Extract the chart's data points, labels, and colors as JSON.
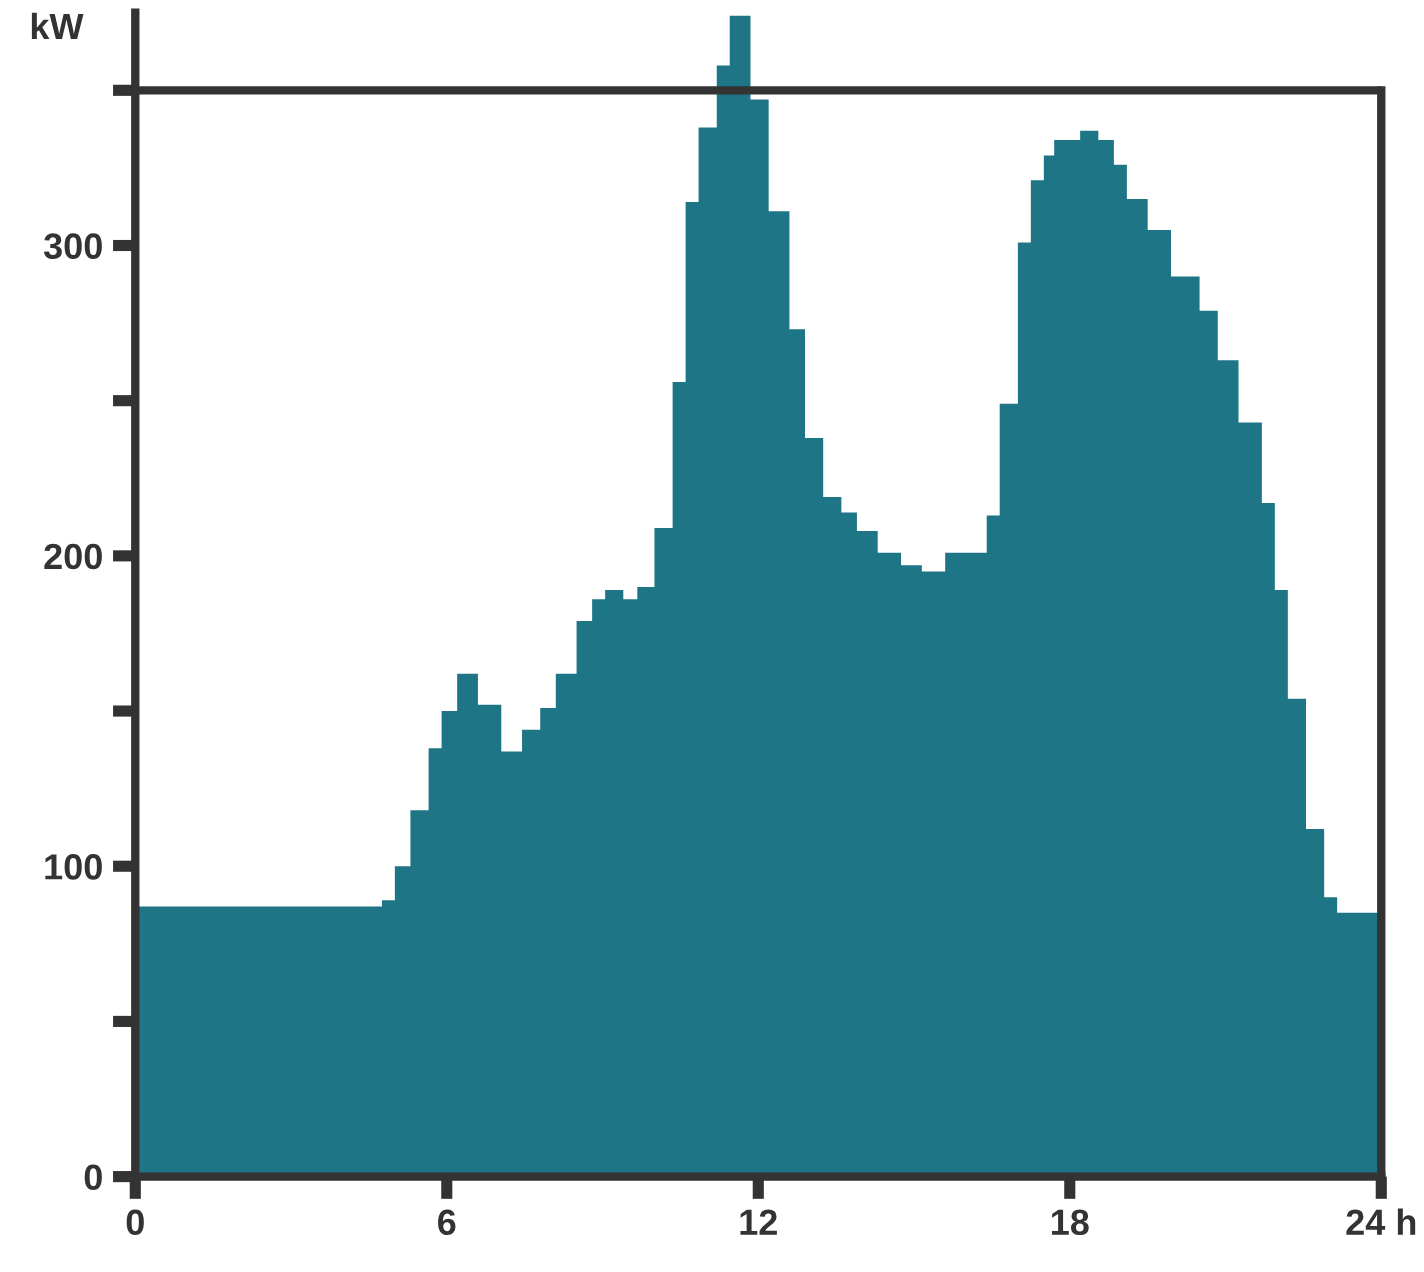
{
  "chart_data": {
    "type": "area",
    "ylabel": "kW",
    "color": "#1e7585",
    "x": [
      0,
      4.75,
      5.0,
      5.3,
      5.65,
      5.9,
      6.2,
      6.6,
      7.05,
      7.45,
      7.8,
      8.1,
      8.5,
      8.8,
      9.05,
      9.4,
      9.67,
      10.0,
      10.35,
      10.6,
      10.85,
      11.2,
      11.45,
      11.85,
      12.2,
      12.6,
      12.9,
      13.25,
      13.6,
      13.9,
      14.3,
      14.75,
      15.15,
      15.6,
      16.4,
      16.65,
      17.0,
      17.25,
      17.5,
      17.7,
      18.2,
      18.55,
      18.85,
      19.1,
      19.5,
      19.95,
      20.5,
      20.85,
      21.25,
      21.7,
      21.95,
      22.2,
      22.55,
      22.9,
      23.15,
      24
    ],
    "values": [
      87,
      89,
      100,
      118,
      138,
      150,
      162,
      152,
      137,
      144,
      151,
      162,
      179,
      186,
      189,
      186,
      190,
      209,
      256,
      314,
      338,
      358,
      374,
      347,
      311,
      273,
      238,
      219,
      214,
      208,
      201,
      197,
      195,
      201,
      213,
      249,
      301,
      321,
      329,
      334,
      337,
      334,
      326,
      315,
      305,
      290,
      279,
      263,
      243,
      217,
      189,
      154,
      112,
      90,
      85,
      85
    ],
    "xlim": [
      0,
      24
    ],
    "xticks": [
      0,
      6,
      12,
      18,
      {
        "value": 24,
        "label": "24 h"
      }
    ],
    "ylim": [
      0,
      375
    ],
    "ref_lines": [
      {
        "axis": "y",
        "value": 350,
        "color": "#333333"
      }
    ],
    "yticks": [
      0,
      {
        "value": 50,
        "label": null
      },
      100,
      {
        "value": 150,
        "label": null
      },
      200,
      {
        "value": 250,
        "label": null
      },
      300,
      {
        "value": 350,
        "label": null
      }
    ],
    "grid": false,
    "legend": false
  }
}
